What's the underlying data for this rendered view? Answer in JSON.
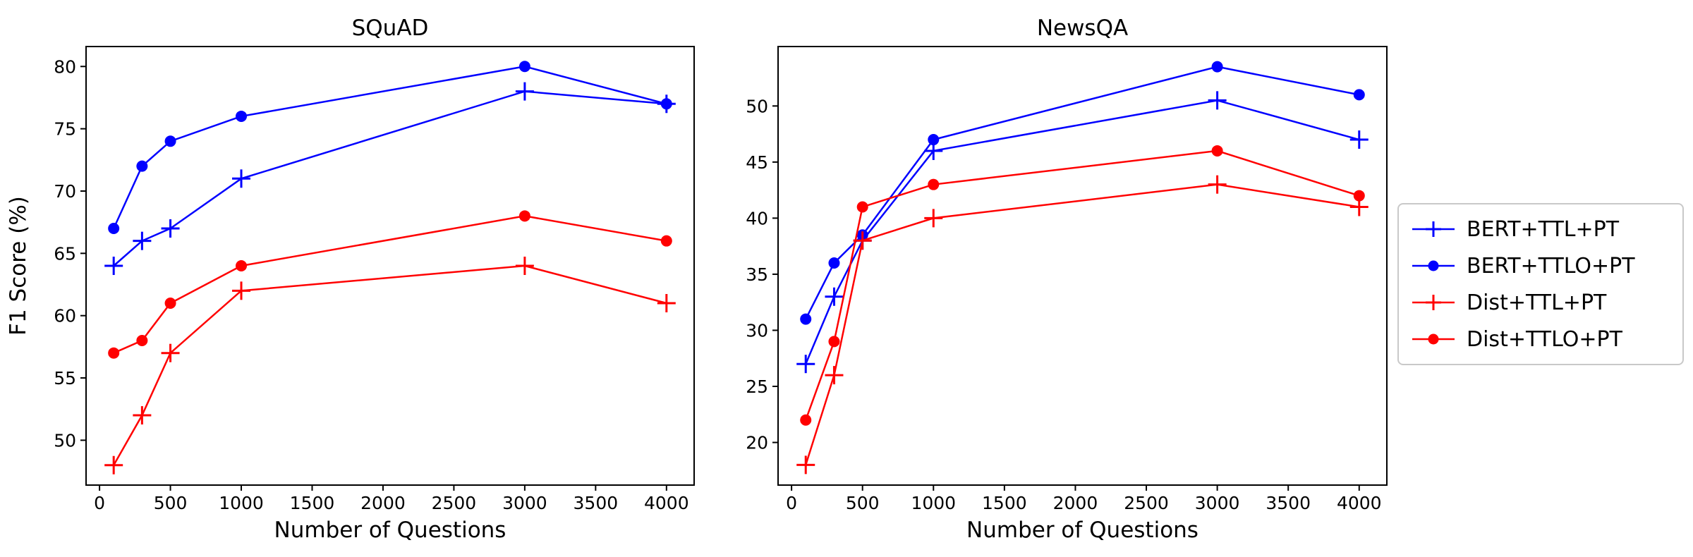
{
  "figure": {
    "background": "#ffffff"
  },
  "colors": {
    "blue": "#0000ff",
    "red": "#ff0000",
    "axis": "#000000",
    "text": "#000000",
    "legend_border": "#c9c9c9"
  },
  "legend": {
    "position": "right-outside",
    "entries": [
      {
        "label": "BERT+TTL+PT",
        "color": "#0000ff",
        "marker": "plus"
      },
      {
        "label": "BERT+TTLO+PT",
        "color": "#0000ff",
        "marker": "circle"
      },
      {
        "label": "Dist+TTL+PT",
        "color": "#ff0000",
        "marker": "plus"
      },
      {
        "label": "Dist+TTLO+PT",
        "color": "#ff0000",
        "marker": "circle"
      }
    ]
  },
  "chart_data": [
    {
      "type": "line",
      "title": "SQuAD",
      "xlabel": "Number of Questions",
      "ylabel": "F1 Score (%)",
      "grid": false,
      "x": [
        100,
        300,
        500,
        1000,
        3000,
        4000
      ],
      "xticks": [
        0,
        500,
        1000,
        1500,
        2000,
        2500,
        3000,
        3500,
        4000
      ],
      "yticks": [
        50,
        55,
        60,
        65,
        70,
        75,
        80
      ],
      "xlim": [
        -95,
        4195
      ],
      "ylim": [
        46.4,
        81.6
      ],
      "series": [
        {
          "name": "BERT+TTL+PT",
          "color": "#0000ff",
          "marker": "plus",
          "values": [
            64,
            66,
            67,
            71,
            78,
            77
          ]
        },
        {
          "name": "BERT+TTLO+PT",
          "color": "#0000ff",
          "marker": "circle",
          "values": [
            67,
            72,
            74,
            76,
            80,
            77
          ]
        },
        {
          "name": "Dist+TTL+PT",
          "color": "#ff0000",
          "marker": "plus",
          "values": [
            48,
            52,
            57,
            62,
            64,
            61
          ]
        },
        {
          "name": "Dist+TTLO+PT",
          "color": "#ff0000",
          "marker": "circle",
          "values": [
            57,
            58,
            61,
            64,
            68,
            66
          ]
        }
      ]
    },
    {
      "type": "line",
      "title": "NewsQA",
      "xlabel": "Number of Questions",
      "ylabel": "",
      "grid": false,
      "x": [
        100,
        300,
        500,
        1000,
        3000,
        4000
      ],
      "xticks": [
        0,
        500,
        1000,
        1500,
        2000,
        2500,
        3000,
        3500,
        4000
      ],
      "yticks": [
        20,
        25,
        30,
        35,
        40,
        45,
        50
      ],
      "xlim": [
        -95,
        4195
      ],
      "ylim": [
        16.2,
        55.3
      ],
      "series": [
        {
          "name": "BERT+TTL+PT",
          "color": "#0000ff",
          "marker": "plus",
          "values": [
            27,
            33,
            38,
            46,
            50.5,
            47
          ]
        },
        {
          "name": "BERT+TTLO+PT",
          "color": "#0000ff",
          "marker": "circle",
          "values": [
            31,
            36,
            38.5,
            47,
            53.5,
            51
          ]
        },
        {
          "name": "Dist+TTL+PT",
          "color": "#ff0000",
          "marker": "plus",
          "values": [
            18,
            26,
            38,
            40,
            43,
            41
          ]
        },
        {
          "name": "Dist+TTLO+PT",
          "color": "#ff0000",
          "marker": "circle",
          "values": [
            22,
            29,
            41,
            43,
            46,
            42
          ]
        }
      ]
    }
  ]
}
